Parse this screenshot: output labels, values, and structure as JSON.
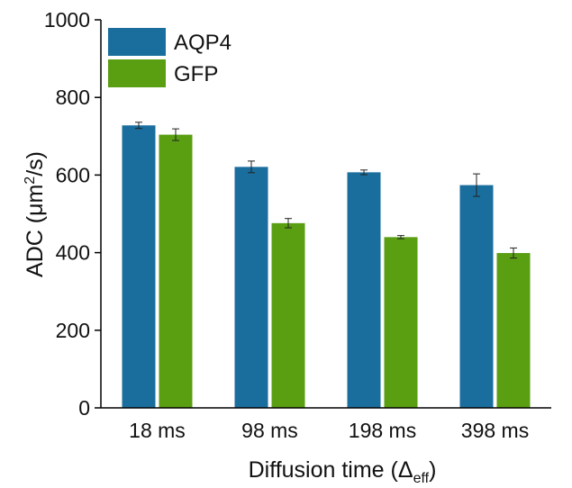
{
  "chart_data": {
    "type": "bar",
    "title": "",
    "categories": [
      "18 ms",
      "98 ms",
      "198 ms",
      "398 ms"
    ],
    "series": [
      {
        "name": "AQP4",
        "color": "#1a6e9e",
        "values": [
          728,
          621,
          607,
          574
        ],
        "errors": [
          8,
          15,
          6,
          29
        ]
      },
      {
        "name": "GFP",
        "color": "#5a9e12",
        "values": [
          704,
          476,
          440,
          399
        ],
        "errors": [
          15,
          12,
          4,
          13
        ]
      }
    ],
    "ylim": [
      0,
      1000
    ],
    "yticks": [
      0,
      200,
      400,
      600,
      800,
      1000
    ],
    "ylabel": {
      "main": "ADC (",
      "mu": "μm",
      "sup": "2",
      "rest": "/s)"
    },
    "xlabel": {
      "main": "Diffusion time (",
      "delta": "Δ",
      "sub": "eff",
      "close": ")"
    },
    "grid": false,
    "legend_position": "top-left"
  }
}
